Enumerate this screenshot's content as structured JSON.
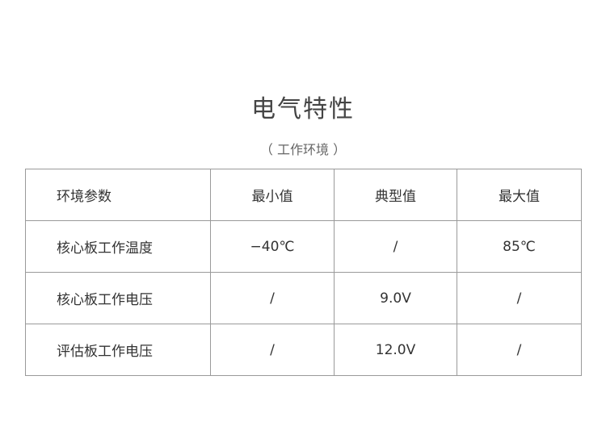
{
  "title": "电气特性",
  "subtitle": "（ 工作环境 ）",
  "table": {
    "headers": [
      "环境参数",
      "最小值",
      "典型值",
      "最大值"
    ],
    "rows": [
      [
        "核心板工作温度",
        "−40℃",
        "/",
        "85℃"
      ],
      [
        "核心板工作电压",
        "/",
        "9.0V",
        "/"
      ],
      [
        "评估板工作电压",
        "/",
        "12.0V",
        "/"
      ]
    ]
  }
}
